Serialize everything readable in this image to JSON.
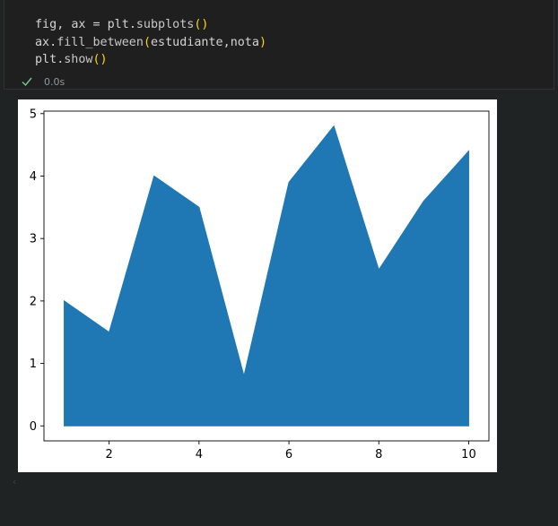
{
  "code_cell": {
    "lines": [
      [
        {
          "t": "fig",
          "c": "tok-var"
        },
        {
          "t": ", ",
          "c": "tok-plain"
        },
        {
          "t": "ax",
          "c": "tok-var"
        },
        {
          "t": " = ",
          "c": "tok-plain"
        },
        {
          "t": "plt",
          "c": "tok-var"
        },
        {
          "t": ".",
          "c": "tok-plain"
        },
        {
          "t": "subplots",
          "c": "tok-method"
        },
        {
          "t": "()",
          "c": "tok-paren"
        }
      ],
      [
        {
          "t": "ax",
          "c": "tok-var"
        },
        {
          "t": ".",
          "c": "tok-plain"
        },
        {
          "t": "fill_between",
          "c": "tok-method"
        },
        {
          "t": "(",
          "c": "tok-paren"
        },
        {
          "t": "estudiante",
          "c": "tok-plain"
        },
        {
          "t": ",",
          "c": "tok-plain"
        },
        {
          "t": "nota",
          "c": "tok-plain"
        },
        {
          "t": ")",
          "c": "tok-paren"
        }
      ],
      [
        {
          "t": "plt",
          "c": "tok-var"
        },
        {
          "t": ".",
          "c": "tok-plain"
        },
        {
          "t": "show",
          "c": "tok-method"
        },
        {
          "t": "()",
          "c": "tok-paren"
        }
      ]
    ],
    "status_icon": "check-icon",
    "status_color": "#73c991",
    "exec_time": "0.0s"
  },
  "chart_data": {
    "type": "area",
    "x": [
      1,
      2,
      3,
      4,
      5,
      6,
      7,
      8,
      9,
      10
    ],
    "series": [
      {
        "values": [
          2.0,
          1.5,
          4.0,
          3.5,
          0.8,
          3.9,
          4.8,
          2.5,
          3.6,
          4.4
        ],
        "color": "#1f77b4"
      }
    ],
    "baseline": 0,
    "xticks": [
      2,
      4,
      6,
      8,
      10
    ],
    "yticks": [
      0,
      1,
      2,
      3,
      4,
      5
    ],
    "xlim": [
      0.55,
      10.45
    ],
    "ylim": [
      -0.24,
      5.04
    ],
    "title": "",
    "xlabel": "",
    "ylabel": "",
    "grid": false
  },
  "scroll_hint": "‹"
}
